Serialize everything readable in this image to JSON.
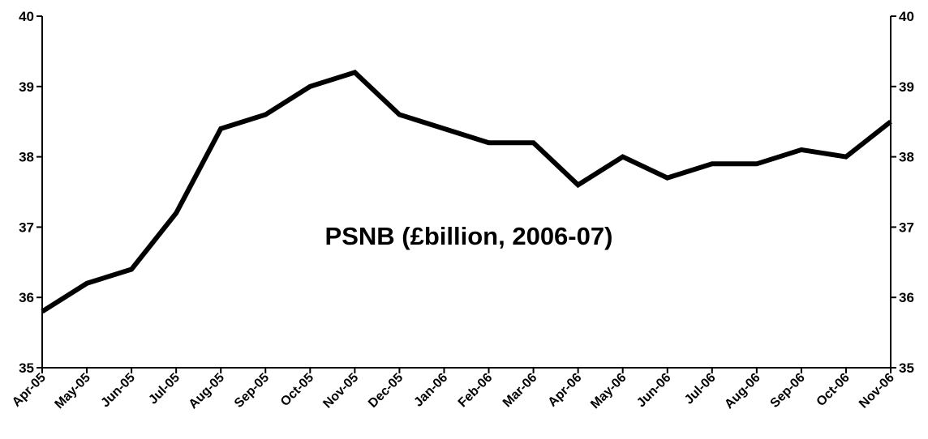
{
  "chart_data": {
    "type": "line",
    "title": "PSNB (£billion, 2006-07)",
    "xlabel": "",
    "ylabel": "",
    "categories": [
      "Apr-05",
      "May-05",
      "Jun-05",
      "Jul-05",
      "Aug-05",
      "Sep-05",
      "Oct-05",
      "Nov-05",
      "Dec-05",
      "Jan-06",
      "Feb-06",
      "Mar-06",
      "Apr-06",
      "May-06",
      "Jun-06",
      "Jul-06",
      "Aug-06",
      "Sep-06",
      "Oct-06",
      "Nov-06"
    ],
    "series": [
      {
        "values": [
          35.8,
          36.2,
          36.4,
          37.2,
          38.4,
          38.6,
          39.0,
          39.2,
          38.6,
          38.4,
          38.2,
          38.2,
          37.6,
          38.0,
          37.7,
          37.9,
          37.9,
          38.1,
          38.0,
          38.5
        ]
      }
    ],
    "ylim": [
      35,
      40
    ],
    "yticks": [
      "35",
      "36",
      "37",
      "38",
      "39",
      "40"
    ],
    "y_axis_right_mirrored": true,
    "grid": false,
    "legend": "none",
    "colors": {
      "line": "#000000",
      "axis": "#000000",
      "background": "#ffffff"
    }
  }
}
